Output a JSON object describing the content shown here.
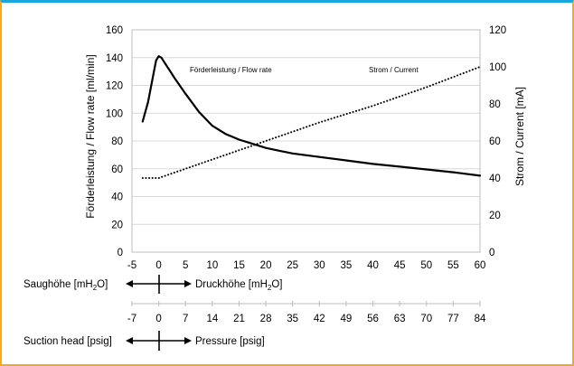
{
  "chart_data": {
    "type": "line",
    "xlabel": "",
    "xlim": [
      -5,
      60
    ],
    "x_ticks": [
      "-5",
      "0",
      "5",
      "10",
      "15",
      "20",
      "25",
      "30",
      "35",
      "40",
      "45",
      "50",
      "55",
      "60"
    ],
    "y_left": {
      "label": "Förderleistung / Flow rate [ml/min]",
      "ylim": [
        0,
        160
      ],
      "ticks": [
        "0",
        "20",
        "40",
        "60",
        "80",
        "100",
        "120",
        "140",
        "160"
      ]
    },
    "y_right": {
      "label": "Strom / Current [mA]",
      "ylim": [
        0,
        120
      ],
      "ticks": [
        "0",
        "20",
        "40",
        "60",
        "80",
        "100",
        "120"
      ]
    },
    "series": [
      {
        "name": "Förderleistung / Flow rate",
        "axis": "left",
        "style": "solid",
        "color": "#000000",
        "x": [
          -3,
          -2,
          -1,
          -0.5,
          0,
          0.5,
          1,
          2,
          3,
          5,
          7.5,
          10,
          12.5,
          15,
          17.5,
          20,
          22.5,
          25,
          30,
          35,
          40,
          45,
          50,
          55,
          60
        ],
        "y": [
          94,
          108,
          128,
          138,
          141,
          140,
          137,
          131,
          125,
          114,
          101,
          91,
          85,
          81,
          78,
          75,
          73,
          71,
          68.5,
          66,
          63.5,
          61.5,
          59.5,
          57.5,
          55
        ]
      },
      {
        "name": "Strom / Current",
        "axis": "right",
        "style": "dotted",
        "color": "#000000",
        "x": [
          -3,
          -1,
          0,
          10,
          20,
          30,
          40,
          50,
          60
        ],
        "y": [
          40,
          40,
          40,
          50,
          60,
          70,
          79,
          89,
          100
        ]
      }
    ],
    "grid": "horizontal",
    "annotations": [
      "Förderleistung / Flow rate",
      "Strom / Current"
    ],
    "secondary_axes": [
      {
        "left_label": "Saughöhe [mH",
        "left_sub": "2",
        "left_tail": "O]",
        "right_label": "Druckhöhe [mH",
        "right_sub": "2",
        "right_tail": "O]"
      },
      {
        "ticks": [
          "-7",
          "0",
          "7",
          "14",
          "21",
          "28",
          "35",
          "42",
          "49",
          "56",
          "63",
          "70",
          "77",
          "84"
        ],
        "left_label": "Suction head [psig]",
        "right_label": "Pressure [psig]"
      }
    ]
  }
}
